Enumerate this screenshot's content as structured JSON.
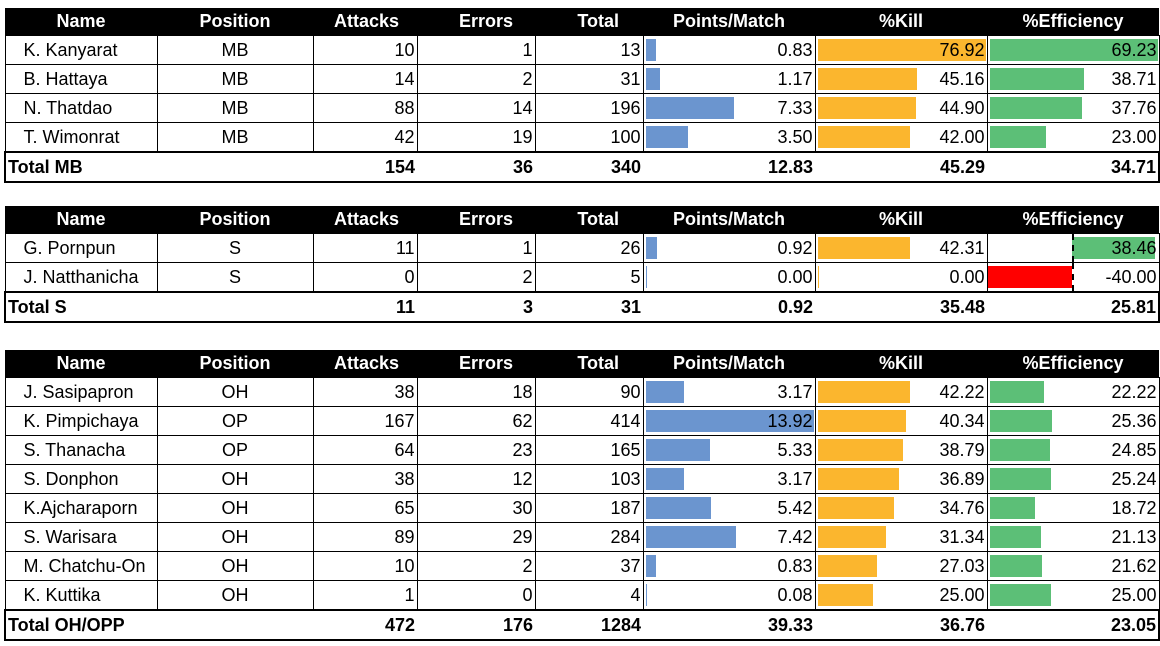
{
  "headers": {
    "name": "Name",
    "position": "Position",
    "attacks": "Attacks",
    "errors": "Errors",
    "total": "Total",
    "ppm": "Points/Match",
    "kill": "%Kill",
    "eff": "%Efficiency"
  },
  "colors": {
    "ppm_bar": "#6b95cf",
    "kill_bar": "#fbb62e",
    "eff_bar_positive": "#5cbf77",
    "eff_bar_negative": "#ff0000"
  },
  "scales": {
    "ppm_max": 13.92,
    "kill_max": 76.92,
    "eff_max": 69.23
  },
  "tables": [
    {
      "rows": [
        {
          "name": "K. Kanyarat",
          "position": "MB",
          "attacks": "10",
          "errors": "1",
          "total": "13",
          "ppm": "0.83",
          "kill": "76.92",
          "eff": "69.23"
        },
        {
          "name": "B. Hattaya",
          "position": "MB",
          "attacks": "14",
          "errors": "2",
          "total": "31",
          "ppm": "1.17",
          "kill": "45.16",
          "eff": "38.71"
        },
        {
          "name": "N. Thatdao",
          "position": "MB",
          "attacks": "88",
          "errors": "14",
          "total": "196",
          "ppm": "7.33",
          "kill": "44.90",
          "eff": "37.76"
        },
        {
          "name": "T. Wimonrat",
          "position": "MB",
          "attacks": "42",
          "errors": "19",
          "total": "100",
          "ppm": "3.50",
          "kill": "42.00",
          "eff": "23.00"
        }
      ],
      "total": {
        "name": "Total MB",
        "attacks": "154",
        "errors": "36",
        "total": "340",
        "ppm": "12.83",
        "kill": "45.29",
        "eff": "34.71"
      }
    },
    {
      "rows": [
        {
          "name": "G. Pornpun",
          "position": "S",
          "attacks": "11",
          "errors": "1",
          "total": "26",
          "ppm": "0.92",
          "kill": "42.31",
          "eff": "38.46"
        },
        {
          "name": "J. Natthanicha",
          "position": "S",
          "attacks": "0",
          "errors": "2",
          "total": "5",
          "ppm": "0.00",
          "kill": "0.00",
          "eff": "-40.00"
        }
      ],
      "total": {
        "name": "Total S",
        "attacks": "11",
        "errors": "3",
        "total": "31",
        "ppm": "0.92",
        "kill": "35.48",
        "eff": "25.81"
      }
    },
    {
      "rows": [
        {
          "name": "J. Sasipapron",
          "position": "OH",
          "attacks": "38",
          "errors": "18",
          "total": "90",
          "ppm": "3.17",
          "kill": "42.22",
          "eff": "22.22"
        },
        {
          "name": "K. Pimpichaya",
          "position": "OP",
          "attacks": "167",
          "errors": "62",
          "total": "414",
          "ppm": "13.92",
          "kill": "40.34",
          "eff": "25.36"
        },
        {
          "name": "S. Thanacha",
          "position": "OP",
          "attacks": "64",
          "errors": "23",
          "total": "165",
          "ppm": "5.33",
          "kill": "38.79",
          "eff": "24.85"
        },
        {
          "name": "S. Donphon",
          "position": "OH",
          "attacks": "38",
          "errors": "12",
          "total": "103",
          "ppm": "3.17",
          "kill": "36.89",
          "eff": "25.24"
        },
        {
          "name": "K.Ajcharaporn",
          "position": "OH",
          "attacks": "65",
          "errors": "30",
          "total": "187",
          "ppm": "5.42",
          "kill": "34.76",
          "eff": "18.72"
        },
        {
          "name": "S. Warisara",
          "position": "OH",
          "attacks": "89",
          "errors": "29",
          "total": "284",
          "ppm": "7.42",
          "kill": "31.34",
          "eff": "21.13"
        },
        {
          "name": "M. Chatchu-On",
          "position": "OH",
          "attacks": "10",
          "errors": "2",
          "total": "37",
          "ppm": "0.83",
          "kill": "27.03",
          "eff": "21.62"
        },
        {
          "name": "K. Kuttika",
          "position": "OH",
          "attacks": "1",
          "errors": "0",
          "total": "4",
          "ppm": "0.08",
          "kill": "25.00",
          "eff": "25.00"
        }
      ],
      "total": {
        "name": "Total OH/OPP",
        "attacks": "472",
        "errors": "176",
        "total": "1284",
        "ppm": "39.33",
        "kill": "36.76",
        "eff": "23.05"
      }
    }
  ]
}
